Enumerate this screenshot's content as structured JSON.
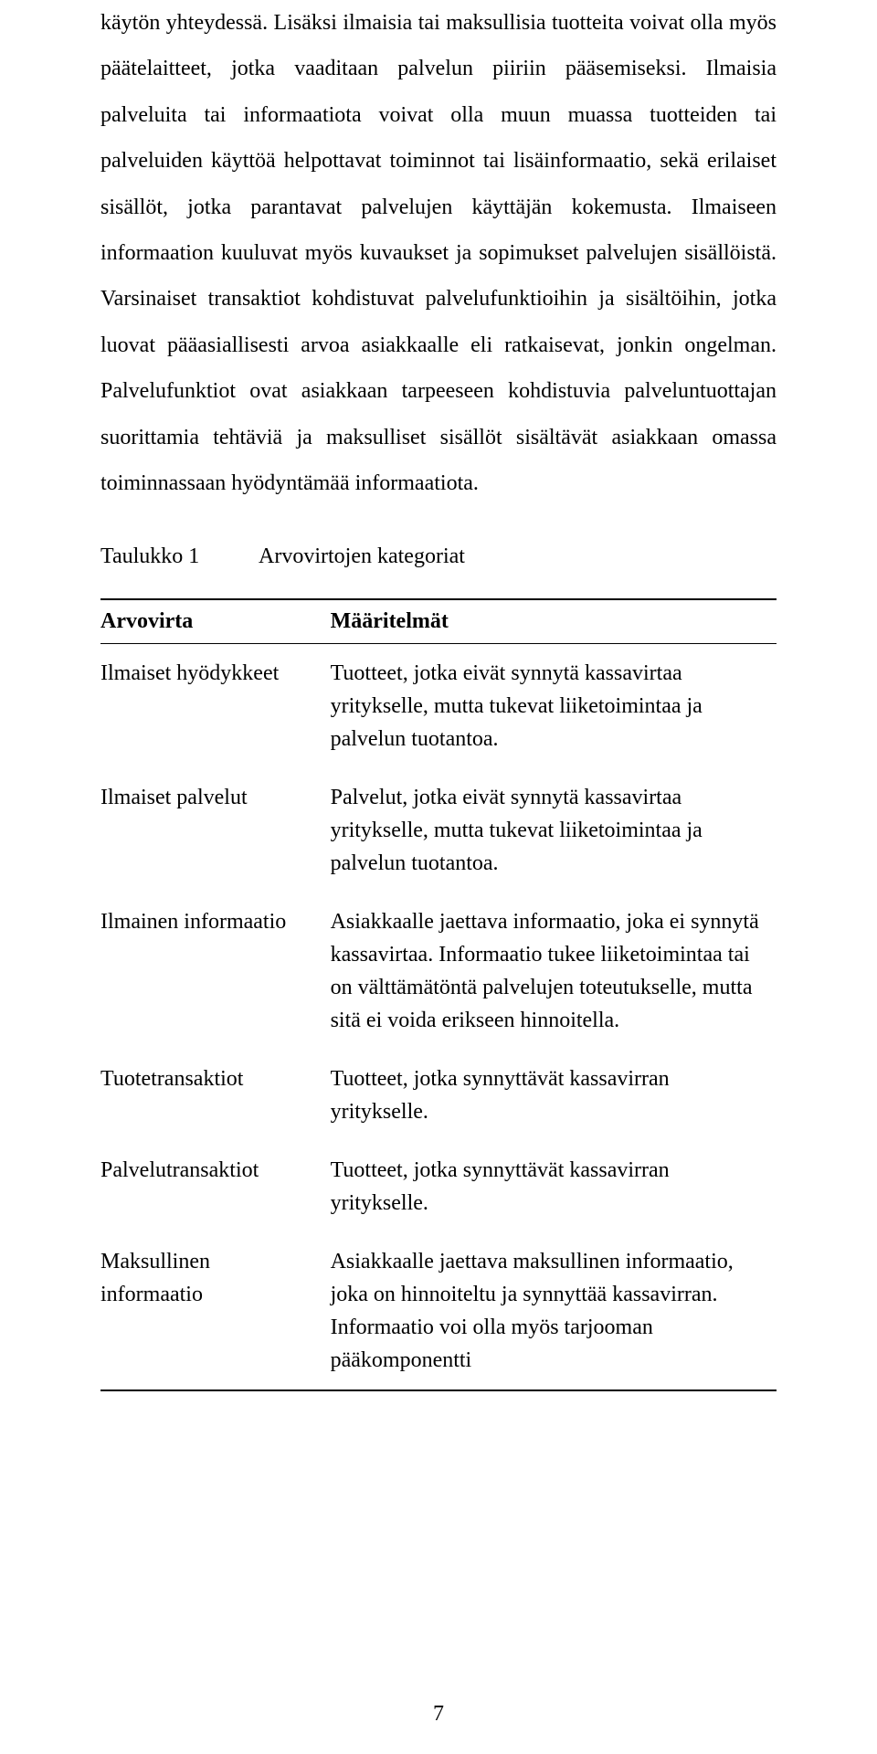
{
  "paragraphs": {
    "p1": "käytön yhteydessä. Lisäksi ilmaisia tai maksullisia tuotteita voivat olla myös päätelaitteet, jotka vaaditaan palvelun piiriin pääsemiseksi. Ilmaisia palveluita tai informaatiota voivat olla muun muassa tuotteiden tai palveluiden käyttöä helpottavat toiminnot tai lisäinformaatio, sekä erilaiset sisällöt, jotka parantavat palvelujen käyttäjän kokemusta. Ilmaiseen informaation kuuluvat myös kuvaukset ja sopimukset palvelujen sisällöistä. Varsinaiset transaktiot kohdistuvat palvelufunktioihin ja sisältöihin, jotka luovat pääasiallisesti arvoa asiakkaalle eli ratkaisevat, jonkin ongelman. Palvelufunktiot ovat asiakkaan tarpeeseen kohdistuvia palveluntuottajan suorittamia tehtäviä ja maksulliset sisällöt sisältävät asiakkaan omassa toiminnassaan hyödyntämää informaatiota."
  },
  "table_caption": {
    "label": "Taulukko 1",
    "title": "Arvovirtojen kategoriat"
  },
  "table": {
    "headers": {
      "c1": "Arvovirta",
      "c2": "Määritelmät"
    },
    "rows": [
      {
        "c1": "Ilmaiset hyödykkeet",
        "c2": "Tuotteet, jotka eivät synnytä kassavirtaa yritykselle, mutta tukevat liiketoimintaa ja palvelun tuotantoa."
      },
      {
        "c1": "Ilmaiset palvelut",
        "c2": "Palvelut, jotka eivät synnytä kassavirtaa yritykselle, mutta tukevat liiketoimintaa ja palvelun tuotantoa."
      },
      {
        "c1": "Ilmainen informaatio",
        "c2": "Asiakkaalle jaettava informaatio, joka ei synnytä kassavirtaa. Informaatio tukee liiketoimintaa tai on välttämätöntä palvelujen toteutukselle, mutta sitä ei voida erikseen hinnoitella."
      },
      {
        "c1": "Tuotetransaktiot",
        "c2": "Tuotteet, jotka synnyttävät kassavirran yritykselle."
      },
      {
        "c1": "Palvelutransaktiot",
        "c2": "Tuotteet, jotka synnyttävät kassavirran yritykselle."
      },
      {
        "c1": "Maksullinen informaatio",
        "c2": "Asiakkaalle jaettava maksullinen informaatio, joka on hinnoiteltu ja synnyttää kassavirran. Informaatio voi olla myös tarjooman pääkomponentti"
      }
    ]
  },
  "page_number": "7"
}
